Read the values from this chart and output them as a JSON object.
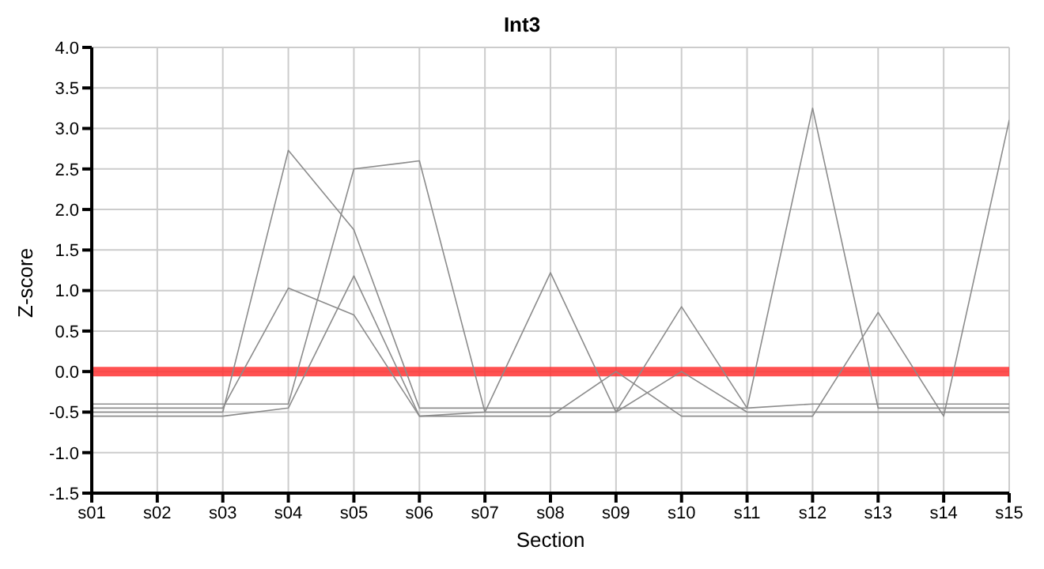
{
  "chart_data": {
    "type": "line",
    "title": "Int3",
    "xlabel": "Section",
    "ylabel": "Z-score",
    "categories": [
      "s01",
      "s02",
      "s03",
      "s04",
      "s05",
      "s06",
      "s07",
      "s08",
      "s09",
      "s10",
      "s11",
      "s12",
      "s13",
      "s14",
      "s15"
    ],
    "series": [
      {
        "color": "#8c8c8c",
        "values": [
          -0.5,
          -0.5,
          -0.5,
          2.73,
          1.75,
          -0.45,
          -0.45,
          -0.45,
          -0.45,
          -0.45,
          -0.45,
          3.25,
          -0.45,
          -0.45,
          -0.45
        ]
      },
      {
        "color": "#8c8c8c",
        "values": [
          -0.4,
          -0.4,
          -0.4,
          -0.4,
          2.5,
          2.6,
          -0.5,
          1.22,
          -0.5,
          0.8,
          -0.45,
          -0.4,
          -0.4,
          -0.4,
          -0.4
        ]
      },
      {
        "color": "#8c8c8c",
        "values": [
          -0.45,
          -0.45,
          -0.45,
          1.03,
          0.7,
          -0.55,
          -0.55,
          -0.55,
          0.0,
          -0.55,
          -0.55,
          -0.55,
          0.73,
          -0.55,
          3.1
        ]
      },
      {
        "color": "#8c8c8c",
        "values": [
          -0.55,
          -0.55,
          -0.55,
          -0.45,
          1.18,
          -0.55,
          -0.5,
          -0.5,
          -0.5,
          0.0,
          -0.5,
          -0.5,
          -0.5,
          -0.5,
          -0.5
        ]
      }
    ],
    "ylim": [
      -1.5,
      4.0
    ],
    "yticks": [
      {
        "value": -1.5,
        "label": "-1.5"
      },
      {
        "value": -1,
        "label": "-1.0"
      },
      {
        "value": -0.5,
        "label": "-0.5"
      },
      {
        "value": 0,
        "label": "0.0"
      },
      {
        "value": 0.5,
        "label": "0.5"
      },
      {
        "value": 1,
        "label": "1.0"
      },
      {
        "value": 1.5,
        "label": "1.5"
      },
      {
        "value": 2,
        "label": "2.0"
      },
      {
        "value": 2.5,
        "label": "2.5"
      },
      {
        "value": 3,
        "label": "3.0"
      },
      {
        "value": 3.5,
        "label": "3.5"
      },
      {
        "value": 4,
        "label": "4.0"
      }
    ],
    "ref_lines": [
      {
        "axis": "y",
        "value": 0,
        "color": "#ff3333"
      }
    ],
    "grid": true,
    "legend": false,
    "marker": "none",
    "line_style": "solid"
  }
}
